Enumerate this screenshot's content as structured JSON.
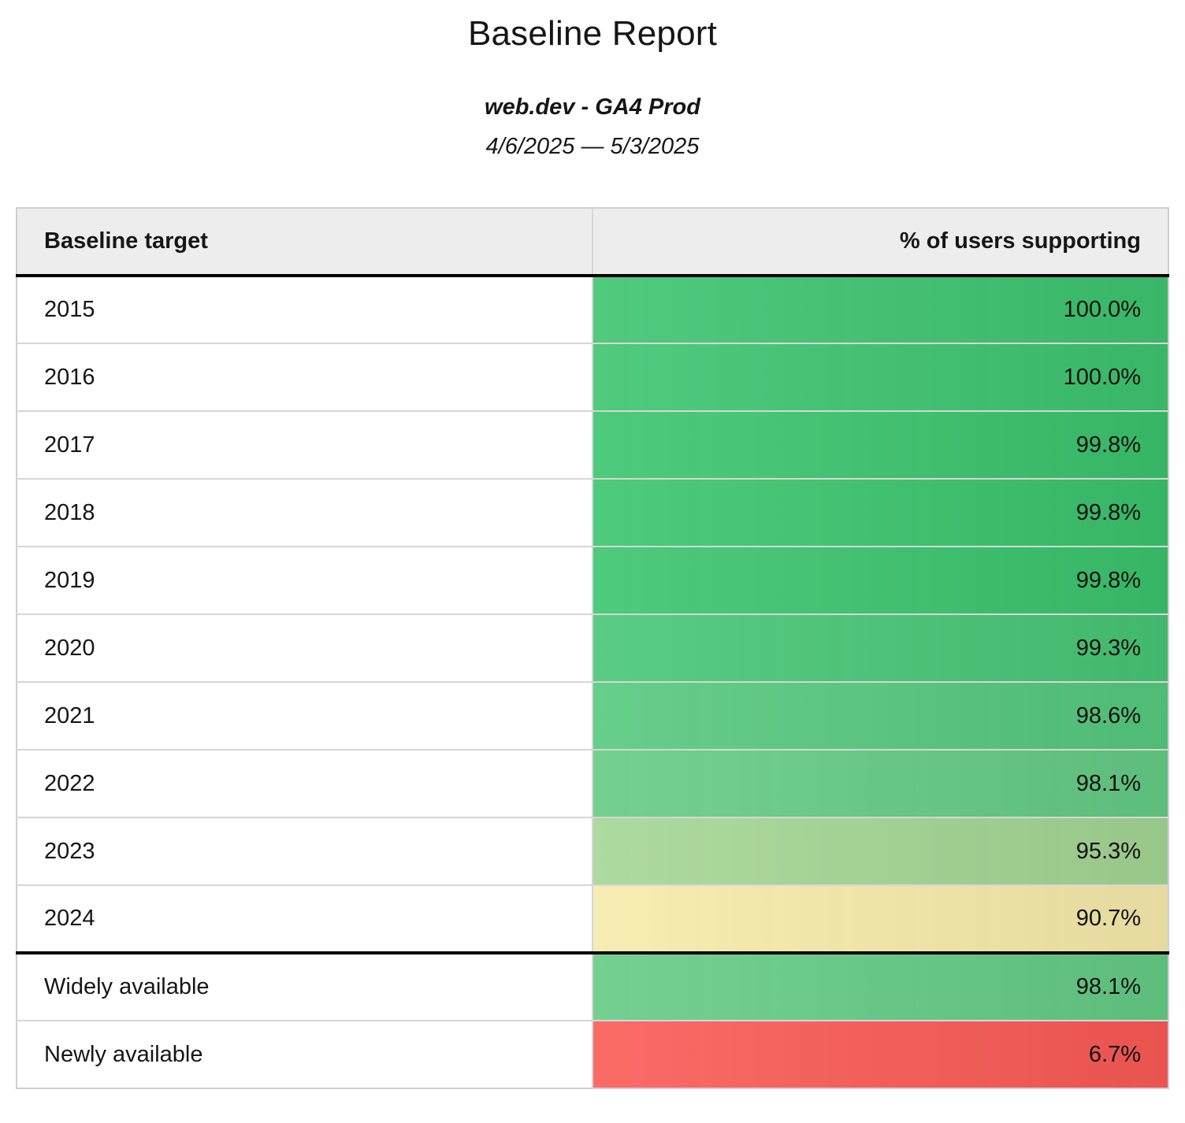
{
  "header": {
    "title": "Baseline Report",
    "source": "web.dev - GA4 Prod",
    "date_range": "4/6/2025 — 5/3/2025"
  },
  "table": {
    "columns": [
      "Baseline target",
      "% of users supporting"
    ],
    "rows": [
      {
        "target": "2015",
        "value": "100.0%",
        "color": "#3dc46f",
        "section": "years"
      },
      {
        "target": "2016",
        "value": "100.0%",
        "color": "#3dc46f",
        "section": "years"
      },
      {
        "target": "2017",
        "value": "99.8%",
        "color": "#3ac46d",
        "section": "years"
      },
      {
        "target": "2018",
        "value": "99.8%",
        "color": "#3ac46d",
        "section": "years"
      },
      {
        "target": "2019",
        "value": "99.8%",
        "color": "#3ac46d",
        "section": "years"
      },
      {
        "target": "2020",
        "value": "99.3%",
        "color": "#47c675",
        "section": "years"
      },
      {
        "target": "2021",
        "value": "98.6%",
        "color": "#55c97d",
        "section": "years"
      },
      {
        "target": "2022",
        "value": "98.1%",
        "color": "#64cb85",
        "section": "years"
      },
      {
        "target": "2023",
        "value": "95.3%",
        "color": "#a4d693",
        "section": "years"
      },
      {
        "target": "2024",
        "value": "90.7%",
        "color": "#f6ebab",
        "section": "years"
      },
      {
        "target": "Widely available",
        "value": "98.1%",
        "color": "#64cb85",
        "section": "summary"
      },
      {
        "target": "Newly available",
        "value": "6.7%",
        "color": "#fb5a55",
        "section": "summary"
      }
    ]
  },
  "chart_data": {
    "type": "table",
    "title": "Baseline Report",
    "subtitle": "web.dev - GA4 Prod",
    "date_range": "4/6/2025 — 5/3/2025",
    "columns": [
      "Baseline target",
      "% of users supporting"
    ],
    "categories": [
      "2015",
      "2016",
      "2017",
      "2018",
      "2019",
      "2020",
      "2021",
      "2022",
      "2023",
      "2024",
      "Widely available",
      "Newly available"
    ],
    "values": [
      100.0,
      100.0,
      99.8,
      99.8,
      99.8,
      99.3,
      98.6,
      98.1,
      95.3,
      90.7,
      98.1,
      6.7
    ],
    "value_format": "percent",
    "legend_position": "none",
    "grid": "table-borders",
    "color_scale": {
      "description": "heatmap on value column: green (high) to yellow (~90) to red (low)",
      "green": "#3dc46f",
      "light_green": "#a4d693",
      "yellow": "#f6ebab",
      "red": "#fb5a55"
    }
  }
}
